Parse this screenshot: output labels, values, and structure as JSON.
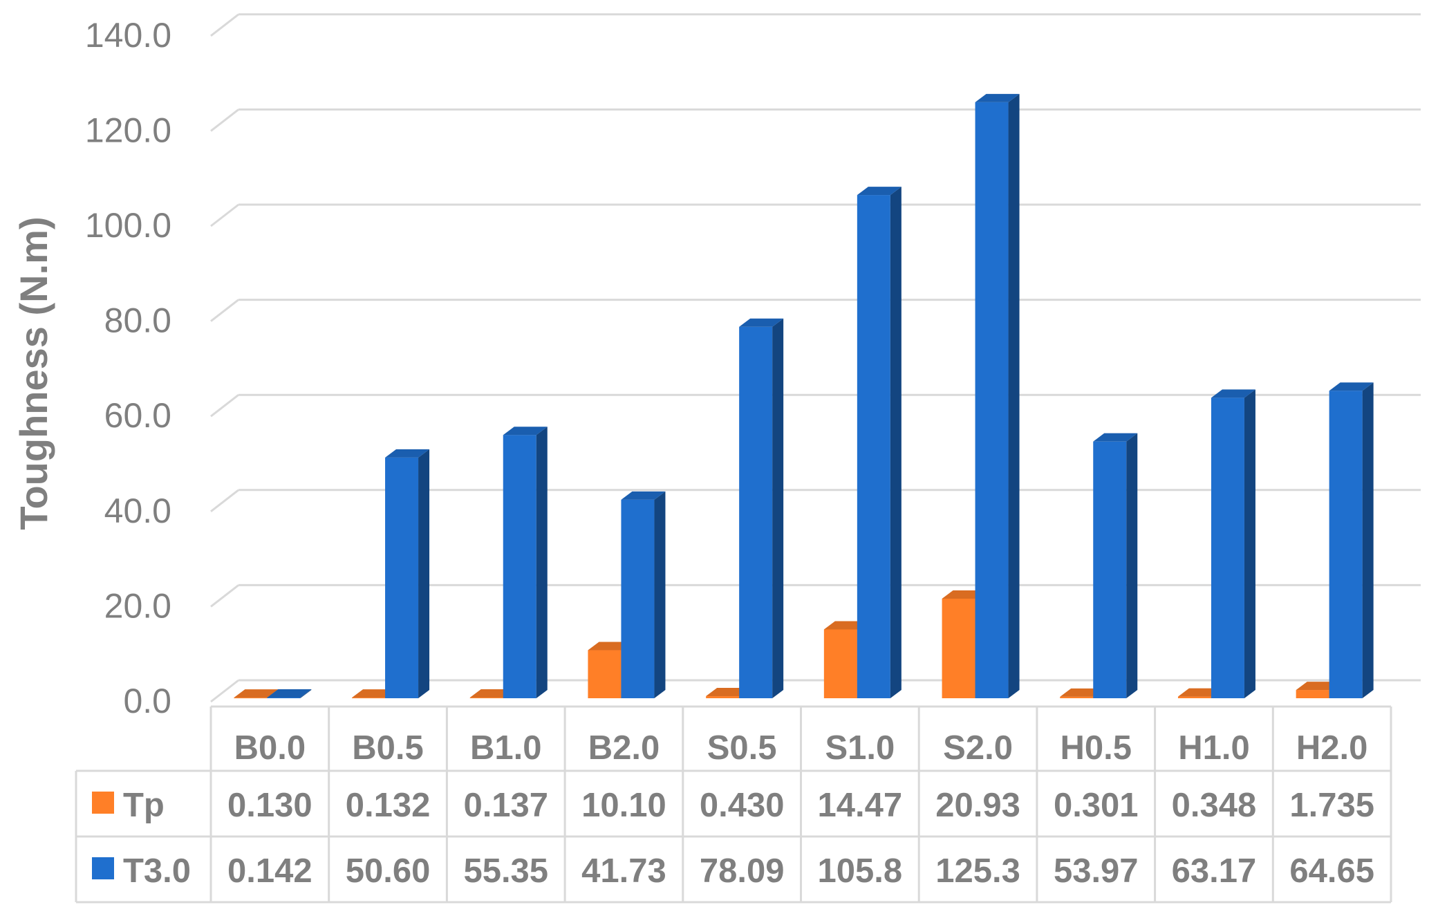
{
  "chart_data": {
    "type": "bar",
    "ylabel": "Toughness (N.m)",
    "ylim": [
      0,
      140
    ],
    "yticks": [
      "0.0",
      "20.0",
      "40.0",
      "60.0",
      "80.0",
      "100.0",
      "120.0",
      "140.0"
    ],
    "grid": true,
    "categories": [
      "B0.0",
      "B0.5",
      "B1.0",
      "B2.0",
      "S0.5",
      "S1.0",
      "S2.0",
      "H0.5",
      "H1.0",
      "H2.0"
    ],
    "series": [
      {
        "name": "Tp",
        "color": "#ff7f27",
        "values": [
          0.13,
          0.132,
          0.137,
          10.1,
          0.43,
          14.47,
          20.93,
          0.301,
          0.348,
          1.735
        ],
        "labels": [
          "0.130",
          "0.132",
          "0.137",
          "10.10",
          "0.430",
          "14.47",
          "20.93",
          "0.301",
          "0.348",
          "1.735"
        ]
      },
      {
        "name": "T3.0",
        "color": "#1f6fce",
        "values": [
          0.142,
          50.6,
          55.35,
          41.73,
          78.09,
          105.8,
          125.3,
          53.97,
          63.17,
          64.65
        ],
        "labels": [
          "0.142",
          "50.60",
          "55.35",
          "41.73",
          "78.09",
          "105.8",
          "125.3",
          "53.97",
          "63.17",
          "64.65"
        ]
      }
    ],
    "legend": "data-table"
  }
}
